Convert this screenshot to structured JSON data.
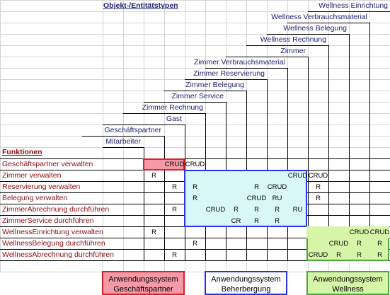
{
  "matrix": {
    "title": "Objekt-/Entitätstypen",
    "functions_heading": "Funktionen",
    "objects": [
      "Mitarbeiter",
      "Geschäftspartner",
      "Gast",
      "Zimmer Rechnung",
      "Zimmer Service",
      "Zimmer Belegung",
      "Zimmer Reservierung",
      "Zimmer Verbrauchsmaterial",
      "Zimmer",
      "Wellness Rechnung",
      "Wellness Belegung",
      "Wellness Verbrauchsmaterial",
      "Wellness Einrichtung"
    ],
    "functions": [
      "Geschäftspartner verwalten",
      "Zimmer verwalten",
      "Reservierung verwalten",
      "Belegung verwalten",
      "ZimmerAbrechnung durchführen",
      "ZimmerService durchführen",
      "WellnessEinrichtung verwalten",
      "WellnessBelegung durchführen",
      "WellnessAbrechnung durchführen"
    ],
    "cells": [
      [
        "",
        "",
        "CRUD",
        "CRUD",
        "",
        "",
        "",
        "",
        "",
        "",
        "",
        "",
        ""
      ],
      [
        "",
        "R",
        "",
        "",
        "",
        "",
        "",
        "",
        "CRUD",
        "CRUD",
        "",
        "",
        ""
      ],
      [
        "",
        "",
        "R",
        "R",
        "",
        "",
        "R",
        "CRUD",
        "",
        "R",
        "",
        "",
        ""
      ],
      [
        "",
        "",
        "",
        "R",
        "",
        "",
        "CRUD",
        "RU",
        "",
        "R",
        "",
        "",
        ""
      ],
      [
        "",
        "",
        "R",
        "",
        "CRUD",
        "R",
        "R",
        "R",
        "RU",
        "",
        "",
        "",
        ""
      ],
      [
        "",
        "",
        "",
        "",
        "",
        "CR",
        "R",
        "R",
        "",
        "",
        "",
        "",
        ""
      ],
      [
        "",
        "R",
        "",
        "",
        "",
        "",
        "",
        "",
        "",
        "",
        "",
        "CRUD",
        "CRUD"
      ],
      [
        "",
        "",
        "",
        "R",
        "",
        "",
        "",
        "",
        "",
        "",
        "CRUD",
        "R",
        "R"
      ],
      [
        "",
        "",
        "R",
        "",
        "",
        "",
        "",
        "",
        "",
        "CRUD",
        "R",
        "R",
        "R"
      ]
    ]
  },
  "systems": [
    {
      "line1": "Anwendungssystem",
      "line2": "Geschäftspartner",
      "color": "#f59aa6",
      "border": "#d9202f"
    },
    {
      "line1": "Anwendungssystem",
      "line2": "Beherbergung",
      "color": "#ffffff",
      "border": "#2733e6"
    },
    {
      "line1": "Anwendungssystem",
      "line2": "Wellness",
      "color": "#d7f5a8",
      "border": "#4aa83a"
    }
  ]
}
